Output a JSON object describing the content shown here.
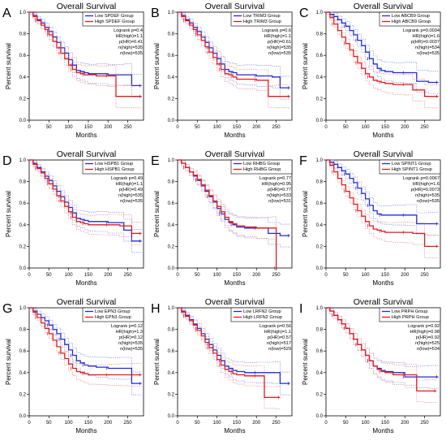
{
  "colors": {
    "low": "#1f2bd6",
    "high": "#e31a1c",
    "axis": "#000000",
    "ci_low": "#6f7bf0",
    "ci_high": "#f07a7a"
  },
  "common": {
    "title": "Overall Survival",
    "xlabel": "Months",
    "ylabel": "Percent survival",
    "x_ticks": [
      "0",
      "50",
      "100",
      "150",
      "200",
      "250"
    ],
    "y_ticks": [
      "0.0",
      "0.2",
      "0.4",
      "0.6",
      "0.8",
      "1.0"
    ]
  },
  "chart_data": [
    {
      "panel": "A",
      "type": "line",
      "legend": [
        "Low SPDEF Group",
        "High SPDEF Group"
      ],
      "stats": [
        "Logrank p=0.4",
        "HR(high)=1.1",
        "p(HR)=0.41",
        "n(high)=535",
        "n(low)=535"
      ],
      "xlim": [
        0,
        290
      ],
      "ylim": [
        0,
        1
      ],
      "series": [
        {
          "name": "Low SPDEF Group",
          "x": [
            0,
            10,
            20,
            30,
            40,
            50,
            60,
            70,
            80,
            90,
            100,
            110,
            120,
            130,
            140,
            150,
            170,
            200,
            240,
            260,
            285
          ],
          "y": [
            1.0,
            0.97,
            0.93,
            0.9,
            0.86,
            0.82,
            0.77,
            0.72,
            0.67,
            0.62,
            0.56,
            0.51,
            0.46,
            0.45,
            0.44,
            0.43,
            0.43,
            0.42,
            0.42,
            0.32,
            0.32
          ]
        },
        {
          "name": "High SPDEF Group",
          "x": [
            0,
            10,
            20,
            30,
            40,
            50,
            60,
            70,
            80,
            90,
            100,
            110,
            120,
            130,
            140,
            150,
            170,
            200,
            220,
            240,
            285
          ],
          "y": [
            1.0,
            0.96,
            0.92,
            0.88,
            0.84,
            0.79,
            0.73,
            0.67,
            0.62,
            0.57,
            0.51,
            0.47,
            0.44,
            0.43,
            0.42,
            0.42,
            0.41,
            0.41,
            0.22,
            0.22,
            0.22
          ]
        }
      ]
    },
    {
      "panel": "B",
      "type": "line",
      "legend": [
        "Low TRIM3 Group",
        "High TRIM3 Group"
      ],
      "stats": [
        "Logrank p=0.6",
        "HR(high)=1.1",
        "p(HR)=0.61",
        "n(high)=535",
        "n(low)=535"
      ],
      "xlim": [
        0,
        290
      ],
      "ylim": [
        0,
        1
      ],
      "series": [
        {
          "name": "Low TRIM3 Group",
          "x": [
            0,
            10,
            20,
            30,
            40,
            50,
            60,
            70,
            80,
            90,
            100,
            110,
            120,
            130,
            140,
            150,
            170,
            200,
            240,
            260,
            285
          ],
          "y": [
            1.0,
            0.97,
            0.93,
            0.9,
            0.86,
            0.82,
            0.77,
            0.72,
            0.67,
            0.62,
            0.57,
            0.52,
            0.47,
            0.45,
            0.44,
            0.42,
            0.42,
            0.41,
            0.4,
            0.3,
            0.3
          ]
        },
        {
          "name": "High TRIM3 Group",
          "x": [
            0,
            10,
            20,
            30,
            40,
            50,
            60,
            70,
            80,
            90,
            100,
            110,
            120,
            130,
            140,
            150,
            170,
            200,
            230,
            250,
            285
          ],
          "y": [
            1.0,
            0.96,
            0.92,
            0.88,
            0.84,
            0.79,
            0.74,
            0.68,
            0.63,
            0.58,
            0.52,
            0.47,
            0.43,
            0.42,
            0.4,
            0.38,
            0.38,
            0.37,
            0.22,
            0.22,
            0.22
          ]
        }
      ]
    },
    {
      "panel": "C",
      "type": "line",
      "legend": [
        "Low ABCB9 Group",
        "High ABCB9 Group"
      ],
      "stats": [
        "Logrank p=0.0034",
        "HR(high)=1.6",
        "p(HR)=0.0037",
        "n(high)=534",
        "n(low)=535"
      ],
      "xlim": [
        0,
        290
      ],
      "ylim": [
        0,
        1
      ],
      "series": [
        {
          "name": "Low ABCB9 Group",
          "x": [
            0,
            10,
            20,
            30,
            40,
            50,
            60,
            70,
            80,
            90,
            100,
            110,
            120,
            130,
            140,
            150,
            170,
            200,
            230,
            260,
            285
          ],
          "y": [
            1.0,
            0.98,
            0.96,
            0.93,
            0.9,
            0.87,
            0.83,
            0.79,
            0.74,
            0.69,
            0.63,
            0.57,
            0.52,
            0.48,
            0.46,
            0.45,
            0.44,
            0.44,
            0.36,
            0.35,
            0.35
          ]
        },
        {
          "name": "High ABCB9 Group",
          "x": [
            0,
            10,
            20,
            30,
            40,
            50,
            60,
            70,
            80,
            90,
            100,
            110,
            120,
            130,
            140,
            150,
            170,
            200,
            220,
            250,
            285
          ],
          "y": [
            1.0,
            0.95,
            0.89,
            0.83,
            0.77,
            0.71,
            0.65,
            0.59,
            0.53,
            0.48,
            0.43,
            0.4,
            0.37,
            0.36,
            0.35,
            0.34,
            0.33,
            0.33,
            0.28,
            0.22,
            0.22
          ]
        }
      ]
    },
    {
      "panel": "D",
      "type": "line",
      "legend": [
        "Low HSPB1 Group",
        "High HSPB1 Group"
      ],
      "stats": [
        "Logrank p=0.49",
        "HR(high)=1.1",
        "p(HR)=0.49",
        "n(high)=535",
        "n(low)=535"
      ],
      "xlim": [
        0,
        290
      ],
      "ylim": [
        0,
        1
      ],
      "series": [
        {
          "name": "Low HSPB1 Group",
          "x": [
            0,
            10,
            20,
            30,
            40,
            50,
            60,
            70,
            80,
            90,
            100,
            110,
            120,
            130,
            140,
            150,
            170,
            200,
            240,
            260,
            285
          ],
          "y": [
            1.0,
            0.97,
            0.93,
            0.89,
            0.85,
            0.81,
            0.76,
            0.71,
            0.66,
            0.61,
            0.56,
            0.51,
            0.46,
            0.45,
            0.44,
            0.43,
            0.43,
            0.42,
            0.35,
            0.25,
            0.25
          ]
        },
        {
          "name": "High HSPB1 Group",
          "x": [
            0,
            10,
            20,
            30,
            40,
            50,
            60,
            70,
            80,
            90,
            100,
            110,
            120,
            130,
            140,
            150,
            170,
            200,
            230,
            260,
            285
          ],
          "y": [
            1.0,
            0.96,
            0.92,
            0.88,
            0.83,
            0.78,
            0.73,
            0.67,
            0.62,
            0.57,
            0.52,
            0.47,
            0.43,
            0.42,
            0.41,
            0.4,
            0.4,
            0.4,
            0.39,
            0.32,
            0.32
          ]
        }
      ]
    },
    {
      "panel": "E",
      "type": "line",
      "legend": [
        "Low RHBG Group",
        "High RHBG Group"
      ],
      "stats": [
        "Logrank p=0.77",
        "HR(high)=0.95",
        "p(HR)=0.77",
        "n(high)=533",
        "n(low)=531"
      ],
      "xlim": [
        0,
        290
      ],
      "ylim": [
        0,
        1
      ],
      "series": [
        {
          "name": "Low RHBG Group",
          "x": [
            0,
            10,
            20,
            30,
            40,
            50,
            60,
            70,
            80,
            90,
            100,
            110,
            120,
            130,
            140,
            150,
            170,
            200,
            230,
            260,
            285
          ],
          "y": [
            1.0,
            0.97,
            0.93,
            0.89,
            0.85,
            0.81,
            0.76,
            0.71,
            0.66,
            0.61,
            0.55,
            0.5,
            0.45,
            0.42,
            0.4,
            0.38,
            0.37,
            0.37,
            0.32,
            0.3,
            0.3
          ]
        },
        {
          "name": "High RHBG Group",
          "x": [
            0,
            10,
            20,
            30,
            40,
            50,
            60,
            70,
            80,
            90,
            100,
            110,
            120,
            130,
            140,
            150,
            170,
            200,
            230,
            240,
            250
          ],
          "y": [
            1.0,
            0.97,
            0.93,
            0.89,
            0.86,
            0.82,
            0.77,
            0.72,
            0.67,
            0.62,
            0.57,
            0.52,
            0.47,
            0.43,
            0.41,
            0.39,
            0.38,
            0.37,
            0.37,
            0.37,
            0.0
          ]
        }
      ]
    },
    {
      "panel": "F",
      "type": "line",
      "legend": [
        "Low SPINT1 Group",
        "High SPINT1 Group"
      ],
      "stats": [
        "Logrank p=0.0067",
        "HR(high)=1.6",
        "p(HR)=0.0073",
        "n(high)=535",
        "n(low)=535"
      ],
      "xlim": [
        0,
        290
      ],
      "ylim": [
        0,
        1
      ],
      "series": [
        {
          "name": "Low SPINT1 Group",
          "x": [
            0,
            10,
            20,
            30,
            40,
            50,
            60,
            70,
            80,
            90,
            100,
            110,
            120,
            130,
            140,
            150,
            170,
            200,
            230,
            260,
            285
          ],
          "y": [
            1.0,
            0.98,
            0.96,
            0.93,
            0.9,
            0.87,
            0.83,
            0.79,
            0.74,
            0.69,
            0.64,
            0.58,
            0.53,
            0.5,
            0.49,
            0.49,
            0.49,
            0.49,
            0.41,
            0.41,
            0.41
          ]
        },
        {
          "name": "High SPINT1 Group",
          "x": [
            0,
            10,
            20,
            30,
            40,
            50,
            60,
            70,
            80,
            90,
            100,
            110,
            120,
            130,
            140,
            150,
            170,
            200,
            220,
            250,
            285
          ],
          "y": [
            1.0,
            0.95,
            0.89,
            0.83,
            0.77,
            0.71,
            0.65,
            0.59,
            0.53,
            0.48,
            0.43,
            0.39,
            0.36,
            0.35,
            0.34,
            0.33,
            0.33,
            0.33,
            0.32,
            0.2,
            0.2
          ]
        }
      ]
    },
    {
      "panel": "G",
      "type": "line",
      "legend": [
        "Low EPN3 Group",
        "High EPN3 Group"
      ],
      "stats": [
        "Logrank p=0.12",
        "HR(high)=1.3",
        "p(HR)=0.12",
        "n(high)=535",
        "n(low)=535"
      ],
      "xlim": [
        0,
        290
      ],
      "ylim": [
        0,
        1
      ],
      "series": [
        {
          "name": "Low EPN3 Group",
          "x": [
            0,
            10,
            20,
            30,
            40,
            50,
            60,
            70,
            80,
            90,
            100,
            110,
            120,
            130,
            140,
            150,
            170,
            200,
            230,
            260,
            285
          ],
          "y": [
            1.0,
            0.97,
            0.94,
            0.91,
            0.88,
            0.84,
            0.8,
            0.76,
            0.71,
            0.66,
            0.61,
            0.56,
            0.51,
            0.49,
            0.47,
            0.46,
            0.45,
            0.44,
            0.44,
            0.3,
            0.3
          ]
        },
        {
          "name": "High EPN3 Group",
          "x": [
            0,
            10,
            20,
            30,
            40,
            50,
            60,
            70,
            80,
            90,
            100,
            110,
            120,
            130,
            140,
            150,
            170,
            200,
            230,
            250,
            285
          ],
          "y": [
            1.0,
            0.96,
            0.91,
            0.86,
            0.81,
            0.76,
            0.7,
            0.64,
            0.58,
            0.53,
            0.48,
            0.44,
            0.41,
            0.4,
            0.39,
            0.38,
            0.38,
            0.38,
            0.38,
            0.38,
            0.38
          ]
        }
      ]
    },
    {
      "panel": "H",
      "type": "line",
      "legend": [
        "Low LRFN2 Group",
        "High LRFN2 Group"
      ],
      "stats": [
        "Logrank p=0.56",
        "HR(high)=1.1",
        "p(HR)=0.57",
        "n(high)=517",
        "n(low)=529"
      ],
      "xlim": [
        0,
        290
      ],
      "ylim": [
        0,
        1
      ],
      "series": [
        {
          "name": "Low LRFN2 Group",
          "x": [
            0,
            10,
            20,
            30,
            40,
            50,
            60,
            70,
            80,
            90,
            100,
            110,
            120,
            130,
            140,
            150,
            170,
            200,
            240,
            260,
            285
          ],
          "y": [
            1.0,
            0.97,
            0.93,
            0.89,
            0.85,
            0.81,
            0.76,
            0.71,
            0.66,
            0.61,
            0.56,
            0.51,
            0.46,
            0.44,
            0.42,
            0.41,
            0.4,
            0.4,
            0.4,
            0.3,
            0.3
          ]
        },
        {
          "name": "High LRFN2 Group",
          "x": [
            0,
            10,
            20,
            30,
            40,
            50,
            60,
            70,
            80,
            90,
            100,
            110,
            120,
            130,
            140,
            150,
            170,
            200,
            220,
            250,
            260
          ],
          "y": [
            1.0,
            0.96,
            0.92,
            0.88,
            0.84,
            0.79,
            0.74,
            0.68,
            0.63,
            0.58,
            0.52,
            0.47,
            0.43,
            0.41,
            0.39,
            0.38,
            0.37,
            0.37,
            0.17,
            0.17,
            0.17
          ]
        }
      ]
    },
    {
      "panel": "I",
      "type": "line",
      "legend": [
        "Low PRPH Group",
        "High PRPH Group"
      ],
      "stats": [
        "Logrank p=0.92",
        "HR(high)=0.98",
        "p(HR)=0.92",
        "n(high)=525",
        "n(low)=534"
      ],
      "xlim": [
        0,
        290
      ],
      "ylim": [
        0,
        1
      ],
      "series": [
        {
          "name": "Low PRPH Group",
          "x": [
            0,
            10,
            20,
            30,
            40,
            50,
            60,
            70,
            80,
            90,
            100,
            110,
            120,
            130,
            140,
            150,
            170,
            200,
            230,
            260,
            285
          ],
          "y": [
            1.0,
            0.97,
            0.93,
            0.89,
            0.85,
            0.81,
            0.76,
            0.71,
            0.66,
            0.61,
            0.56,
            0.51,
            0.46,
            0.44,
            0.42,
            0.41,
            0.4,
            0.36,
            0.36,
            0.36,
            0.36
          ]
        },
        {
          "name": "High PRPH Group",
          "x": [
            0,
            10,
            20,
            30,
            40,
            50,
            60,
            70,
            80,
            90,
            100,
            110,
            120,
            130,
            140,
            150,
            170,
            200,
            230,
            250,
            280
          ],
          "y": [
            1.0,
            0.97,
            0.93,
            0.89,
            0.85,
            0.81,
            0.76,
            0.71,
            0.66,
            0.61,
            0.56,
            0.51,
            0.46,
            0.43,
            0.41,
            0.4,
            0.38,
            0.38,
            0.23,
            0.23,
            0.23
          ]
        }
      ]
    }
  ]
}
